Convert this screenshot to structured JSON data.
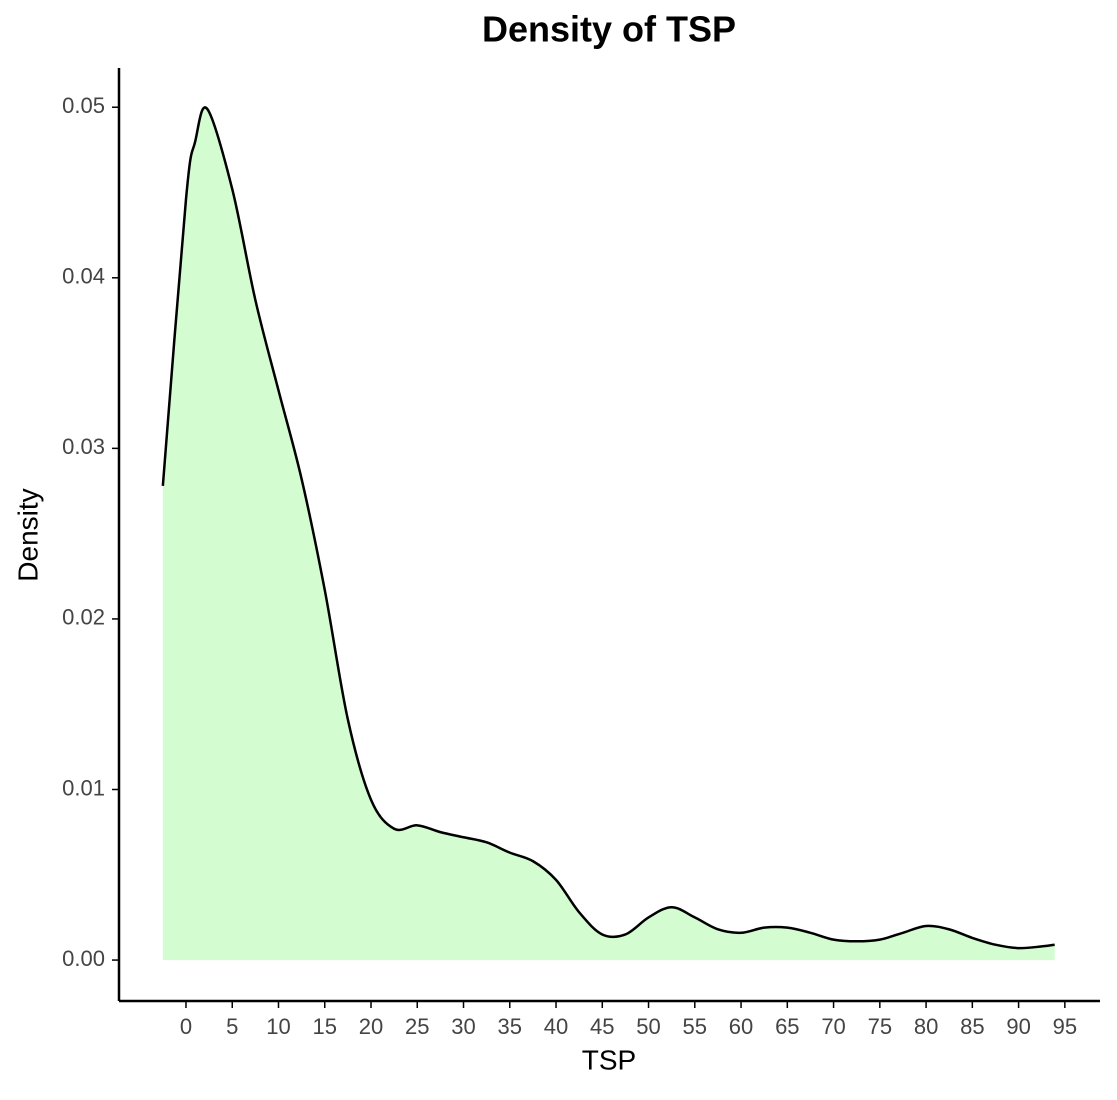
{
  "chart_data": {
    "type": "area",
    "title": "Density of TSP",
    "x_label": "TSP",
    "y_label": "Density",
    "x": [
      -2.5,
      0,
      1,
      2.3,
      5,
      7.5,
      10,
      12.5,
      15,
      17.5,
      20,
      22.5,
      25,
      27.5,
      30,
      32.5,
      35,
      37.5,
      40,
      42.5,
      45,
      47.5,
      50,
      52.5,
      55,
      57.5,
      60,
      62.5,
      65,
      67.5,
      70,
      72.5,
      75,
      77.5,
      80,
      82.5,
      85,
      87.5,
      90,
      92.5,
      93.9
    ],
    "values": [
      0.0278,
      0.0446,
      0.048,
      0.0499,
      0.0452,
      0.0387,
      0.0334,
      0.0282,
      0.0217,
      0.0141,
      0.0094,
      0.0077,
      0.0079,
      0.0075,
      0.0072,
      0.0069,
      0.0063,
      0.0058,
      0.0047,
      0.0028,
      0.0015,
      0.0015,
      0.0025,
      0.0031,
      0.0025,
      0.0018,
      0.0016,
      0.0019,
      0.0019,
      0.0016,
      0.0012,
      0.0011,
      0.0012,
      0.0016,
      0.002,
      0.0018,
      0.0013,
      0.0009,
      0.0007,
      0.0008,
      0.0009
    ],
    "fill_color": "#d3fdd0",
    "line_color": "#000000",
    "xlim": [
      -7.24,
      98.8
    ],
    "ylim": [
      -0.0024,
      0.0523
    ],
    "xticks": [
      0,
      5,
      10,
      15,
      20,
      25,
      30,
      35,
      40,
      45,
      50,
      55,
      60,
      65,
      70,
      75,
      80,
      85,
      90,
      95
    ],
    "yticks": [
      {
        "value": 0,
        "label": "0.00"
      },
      0.01,
      0.02,
      0.03,
      0.04,
      0.05
    ],
    "grid": false
  }
}
